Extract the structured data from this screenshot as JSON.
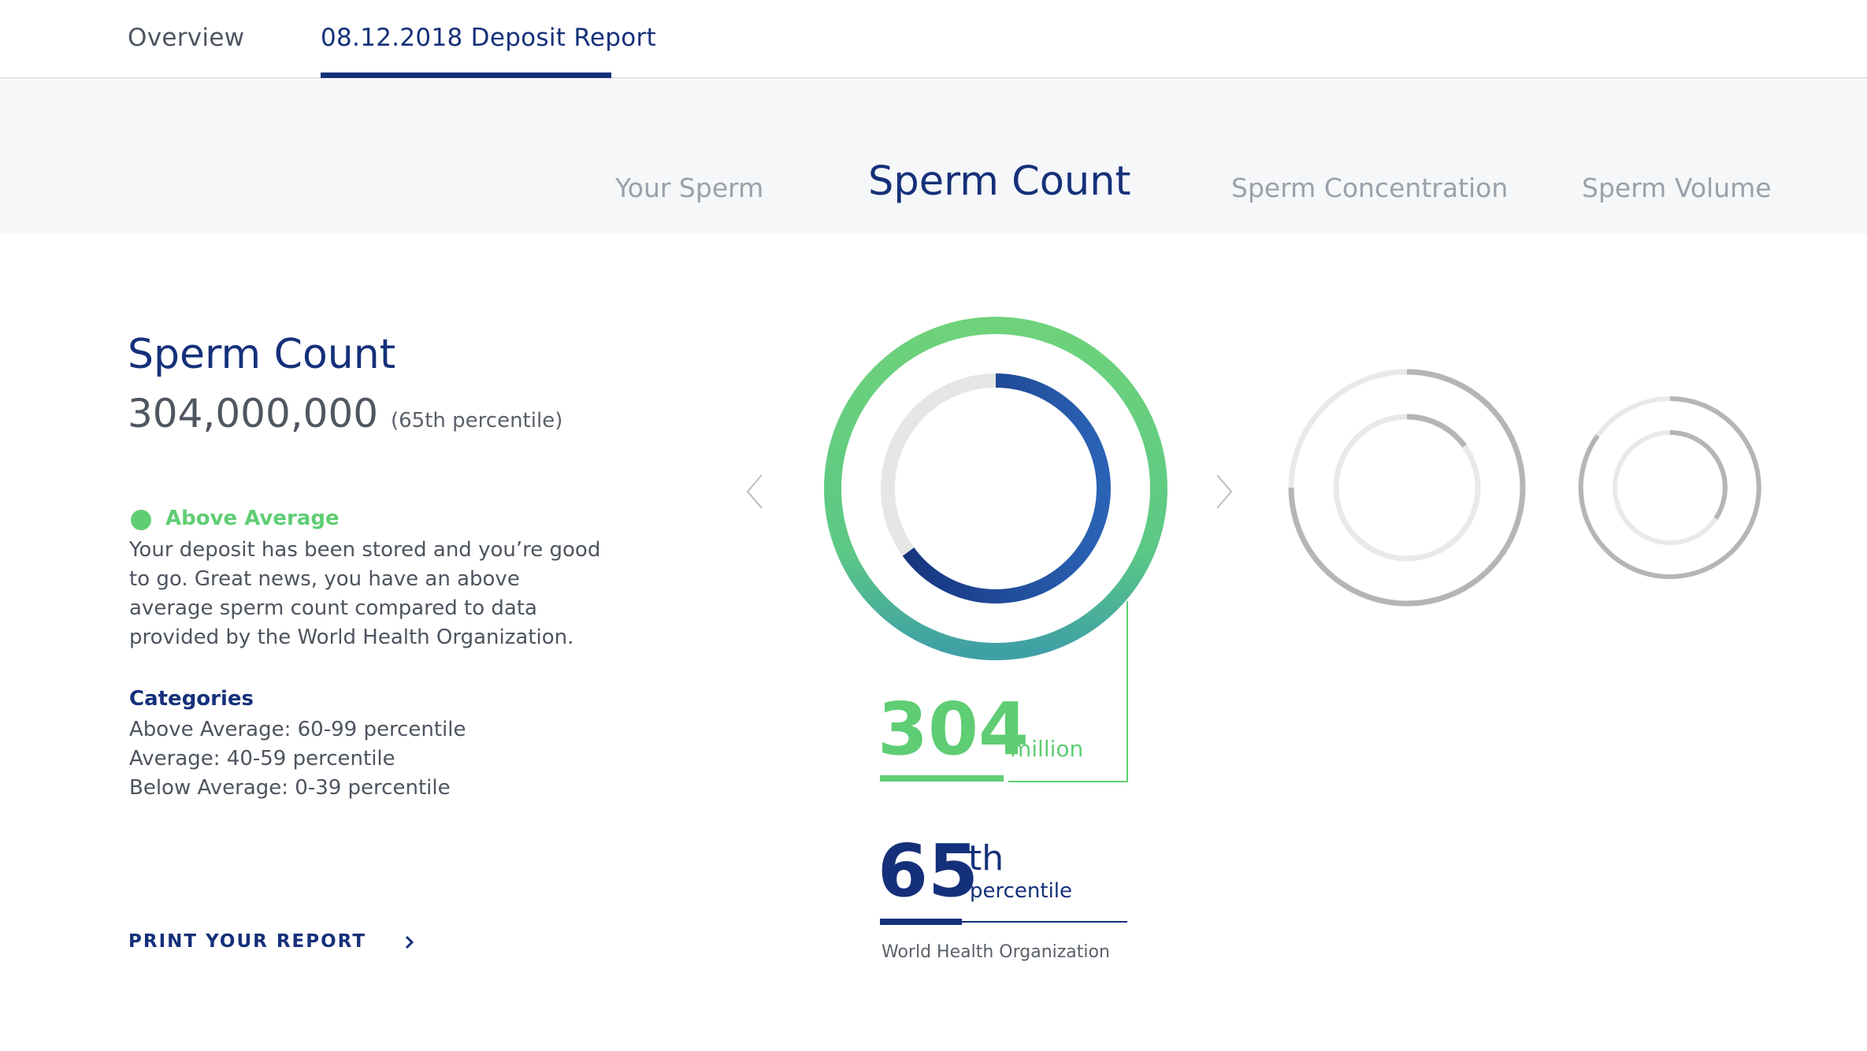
{
  "topnav": {
    "tabs": [
      {
        "label": "Overview"
      },
      {
        "label": "08.12.2018 Deposit Report"
      }
    ],
    "active_index": 1
  },
  "subnav": {
    "items": [
      {
        "label": "Your Sperm"
      },
      {
        "label": "Sperm Count"
      },
      {
        "label": "Sperm Concentration"
      },
      {
        "label": "Sperm Volume"
      }
    ],
    "active_index": 1
  },
  "detail": {
    "title": "Sperm Count",
    "value": "304,000,000",
    "percentile_note": "(65th percentile)",
    "status": {
      "label": "Above Average",
      "color": "#5fcd73"
    },
    "description": "Your deposit has been stored and you’re good to go. Great news, you have an above average sperm count compared to data provided by the World Health Organization.",
    "categories_title": "Categories",
    "categories": [
      "Above Average: 60-99 percentile",
      "Average: 40-59 percentile",
      "Below Average: 0-39 percentile"
    ],
    "print_label": "PRINT YOUR REPORT",
    "print_icon": "chevron-right-icon"
  },
  "carousel": {
    "prev_icon": "chevron-left-icon",
    "next_icon": "chevron-right-icon"
  },
  "metric": {
    "number": "304",
    "unit": "million",
    "number_bar_fraction": 0.5,
    "percentile": "65",
    "percentile_suffix": "th",
    "percentile_word": "percentile",
    "percentile_bar_fraction": 0.33,
    "percentile_fill_fraction": 0.65,
    "source": "World Health Organization"
  },
  "colors": {
    "primary": "#15307a",
    "accent": "#5fcd73",
    "muted": "#9aa1aa",
    "ring_track": "#e6e6e6",
    "ring_inactive": "#b5b5b5"
  }
}
